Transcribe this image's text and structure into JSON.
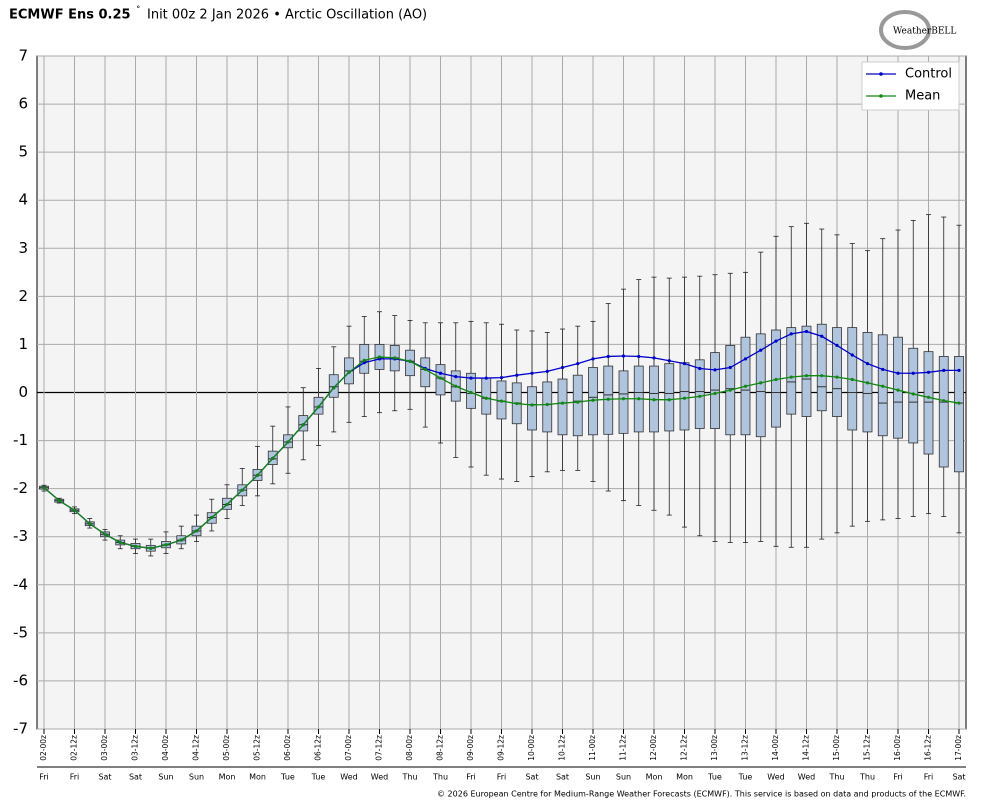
{
  "chart_data": {
    "type": "box",
    "title": "ECMWF Ens 0.25",
    "title_mark": "˚",
    "subtitle": "Init 00z 2 Jan 2026 • Arctic Oscillation (AO)",
    "logo": "WeatherBELL",
    "footer": "© 2026 European Centre for Medium-Range Weather Forecasts (ECMWF). This service is based on data and products of the ECMWF.",
    "categories": [
      "02-00z",
      null,
      "02-12z",
      null,
      "03-00z",
      null,
      "03-12z",
      null,
      "04-00z",
      null,
      "04-12z",
      null,
      "05-00z",
      null,
      "05-12z",
      null,
      "06-00z",
      null,
      "06-12z",
      null,
      "07-00z",
      null,
      "07-12z",
      null,
      "08-00z",
      null,
      "08-12z",
      null,
      "09-00z",
      null,
      "09-12z",
      null,
      "10-00z",
      null,
      "10-12z",
      null,
      "11-00z",
      null,
      "11-12z",
      null,
      "12-00z",
      null,
      "12-12z",
      null,
      "13-00z",
      null,
      "13-12z",
      null,
      "14-00z",
      null,
      "14-12z",
      null,
      "15-00z",
      null,
      "15-12z",
      null,
      "16-00z",
      null,
      "16-12z",
      null,
      "17-00z"
    ],
    "day_labels": [
      "Fri",
      null,
      "Fri",
      null,
      "Sat",
      null,
      "Sat",
      null,
      "Sun",
      null,
      "Sun",
      null,
      "Mon",
      null,
      "Mon",
      null,
      "Tue",
      null,
      "Tue",
      null,
      "Wed",
      null,
      "Wed",
      null,
      "Thu",
      null,
      "Thu",
      null,
      "Fri",
      null,
      "Fri",
      null,
      "Sat",
      null,
      "Sat",
      null,
      "Sun",
      null,
      "Sun",
      null,
      "Mon",
      null,
      "Mon",
      null,
      "Tue",
      null,
      "Tue",
      null,
      "Wed",
      null,
      "Wed",
      null,
      "Thu",
      null,
      "Thu",
      null,
      "Fri",
      null,
      "Fri",
      null,
      "Sat"
    ],
    "ylim": [
      -7,
      7
    ],
    "yticks": [
      -7,
      -6,
      -5,
      -4,
      -3,
      -2,
      -1,
      0,
      1,
      2,
      3,
      4,
      5,
      6,
      7
    ],
    "grid": true,
    "legend": "upper right",
    "box_color": "#b0c4de",
    "boxes": {
      "min": [
        -2.05,
        -2.3,
        -2.52,
        -2.82,
        -3.07,
        -3.25,
        -3.35,
        -3.4,
        -3.35,
        -3.25,
        -3.1,
        -2.88,
        -2.62,
        -2.35,
        -2.15,
        -1.9,
        -1.68,
        -1.4,
        -1.1,
        -0.82,
        -0.62,
        -0.5,
        -0.42,
        -0.38,
        -0.35,
        -0.72,
        -1.05,
        -1.35,
        -1.55,
        -1.72,
        -1.8,
        -1.85,
        -1.75,
        -1.65,
        -1.62,
        -1.62,
        -1.85,
        -2.05,
        -2.25,
        -2.35,
        -2.45,
        -2.55,
        -2.8,
        -2.98,
        -3.1,
        -3.12,
        -3.12,
        -3.1,
        -3.2,
        -3.22,
        -3.22,
        -3.05,
        -2.92,
        -2.78,
        -2.68,
        -2.65,
        -2.62,
        -2.58,
        -2.52,
        -2.58,
        -2.92
      ],
      "q1": [
        -2.01,
        -2.28,
        -2.48,
        -2.77,
        -3.0,
        -3.17,
        -3.25,
        -3.3,
        -3.23,
        -3.15,
        -2.98,
        -2.72,
        -2.43,
        -2.15,
        -1.83,
        -1.5,
        -1.15,
        -0.8,
        -0.45,
        -0.1,
        0.18,
        0.4,
        0.48,
        0.45,
        0.35,
        0.12,
        -0.05,
        -0.18,
        -0.33,
        -0.45,
        -0.55,
        -0.65,
        -0.78,
        -0.82,
        -0.88,
        -0.9,
        -0.88,
        -0.87,
        -0.85,
        -0.82,
        -0.82,
        -0.8,
        -0.78,
        -0.75,
        -0.75,
        -0.88,
        -0.88,
        -0.92,
        -0.72,
        -0.45,
        -0.5,
        -0.38,
        -0.5,
        -0.78,
        -0.82,
        -0.9,
        -0.95,
        -1.05,
        -1.28,
        -1.55,
        -1.65
      ],
      "median": [
        -1.98,
        -2.25,
        -2.45,
        -2.73,
        -2.95,
        -3.12,
        -3.2,
        -3.24,
        -3.17,
        -3.07,
        -2.88,
        -2.6,
        -2.33,
        -2.03,
        -1.72,
        -1.38,
        -1.03,
        -0.67,
        -0.3,
        0.12,
        0.45,
        0.65,
        0.72,
        0.72,
        0.65,
        0.48,
        0.3,
        0.12,
        -0.02,
        -0.12,
        -0.18,
        -0.22,
        -0.25,
        -0.25,
        -0.22,
        -0.18,
        -0.1,
        -0.05,
        -0.03,
        0.0,
        -0.02,
        -0.02,
        0.02,
        0.02,
        0.05,
        0.08,
        0.05,
        0.02,
        0.0,
        0.22,
        0.28,
        0.12,
        0.08,
        0.0,
        -0.02,
        -0.22,
        -0.2,
        -0.2,
        -0.2,
        -0.2,
        -0.22
      ],
      "q3": [
        -1.95,
        -2.22,
        -2.42,
        -2.69,
        -2.9,
        -3.07,
        -3.14,
        -3.18,
        -3.1,
        -2.98,
        -2.78,
        -2.5,
        -2.2,
        -1.92,
        -1.6,
        -1.22,
        -0.88,
        -0.48,
        -0.1,
        0.37,
        0.72,
        1.0,
        1.0,
        0.98,
        0.88,
        0.72,
        0.58,
        0.45,
        0.4,
        0.3,
        0.24,
        0.2,
        0.12,
        0.22,
        0.28,
        0.36,
        0.52,
        0.55,
        0.45,
        0.55,
        0.55,
        0.6,
        0.62,
        0.68,
        0.83,
        0.98,
        1.15,
        1.22,
        1.3,
        1.35,
        1.38,
        1.42,
        1.35,
        1.35,
        1.25,
        1.2,
        1.15,
        0.92,
        0.85,
        0.75,
        0.75
      ],
      "max": [
        -1.93,
        -2.2,
        -2.38,
        -2.62,
        -2.85,
        -2.98,
        -3.05,
        -3.05,
        -2.9,
        -2.78,
        -2.55,
        -2.22,
        -1.92,
        -1.58,
        -1.12,
        -0.7,
        -0.3,
        0.1,
        0.5,
        0.95,
        1.38,
        1.58,
        1.68,
        1.6,
        1.5,
        1.45,
        1.45,
        1.45,
        1.48,
        1.45,
        1.42,
        1.3,
        1.28,
        1.25,
        1.32,
        1.38,
        1.48,
        1.85,
        2.15,
        2.35,
        2.4,
        2.38,
        2.4,
        2.42,
        2.45,
        2.48,
        2.5,
        2.92,
        3.25,
        3.45,
        3.52,
        3.4,
        3.28,
        3.1,
        2.95,
        3.2,
        3.38,
        3.58,
        3.7,
        3.65,
        3.48
      ]
    },
    "series": [
      {
        "name": "Control",
        "color": "#0000cc",
        "values": [
          -1.98,
          -2.25,
          -2.45,
          -2.73,
          -2.95,
          -3.12,
          -3.2,
          -3.24,
          -3.17,
          -3.07,
          -2.88,
          -2.6,
          -2.33,
          -2.03,
          -1.72,
          -1.37,
          -1.03,
          -0.67,
          -0.3,
          0.1,
          0.42,
          0.62,
          0.7,
          0.7,
          0.65,
          0.5,
          0.4,
          0.33,
          0.3,
          0.3,
          0.31,
          0.36,
          0.4,
          0.44,
          0.52,
          0.6,
          0.7,
          0.75,
          0.76,
          0.75,
          0.72,
          0.66,
          0.6,
          0.5,
          0.47,
          0.52,
          0.7,
          0.88,
          1.07,
          1.22,
          1.27,
          1.17,
          0.98,
          0.78,
          0.6,
          0.48,
          0.4,
          0.4,
          0.42,
          0.46,
          0.46
        ]
      },
      {
        "name": "Mean",
        "color": "#118811",
        "values": [
          -1.98,
          -2.25,
          -2.45,
          -2.73,
          -2.95,
          -3.12,
          -3.2,
          -3.24,
          -3.17,
          -3.07,
          -2.88,
          -2.6,
          -2.33,
          -2.03,
          -1.72,
          -1.37,
          -1.03,
          -0.67,
          -0.3,
          0.1,
          0.42,
          0.67,
          0.74,
          0.72,
          0.65,
          0.48,
          0.3,
          0.13,
          0.0,
          -0.12,
          -0.18,
          -0.23,
          -0.26,
          -0.25,
          -0.22,
          -0.2,
          -0.16,
          -0.14,
          -0.13,
          -0.13,
          -0.15,
          -0.15,
          -0.12,
          -0.08,
          -0.02,
          0.05,
          0.13,
          0.2,
          0.27,
          0.32,
          0.35,
          0.35,
          0.32,
          0.27,
          0.2,
          0.13,
          0.05,
          -0.03,
          -0.1,
          -0.17,
          -0.22
        ]
      }
    ]
  }
}
